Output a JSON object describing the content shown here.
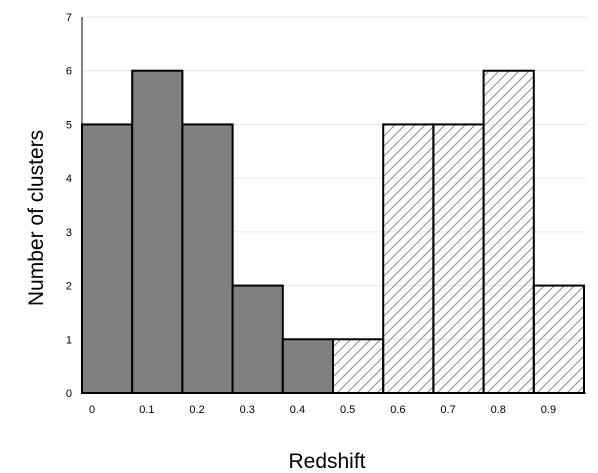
{
  "chart_data": {
    "type": "bar",
    "title": "",
    "xlabel": "Redshift",
    "ylabel": "Number of clusters",
    "categories": [
      "0",
      "0.1",
      "0.2",
      "0.3",
      "0.4",
      "0.5",
      "0.6",
      "0.7",
      "0.8",
      "0.9"
    ],
    "values": [
      5,
      6,
      5,
      2,
      1,
      1,
      5,
      5,
      6,
      2
    ],
    "bar_style": [
      "solid",
      "solid",
      "solid",
      "solid",
      "solid",
      "hatched",
      "hatched",
      "hatched",
      "hatched",
      "hatched"
    ],
    "ylim": [
      0,
      7
    ],
    "yticks": [
      0,
      1,
      2,
      3,
      4,
      5,
      6,
      7
    ],
    "grid": true,
    "colors": {
      "solid_fill": "#808080",
      "hatched_fill": "#ffffff",
      "hatch_line": "#8c8c8c",
      "bar_edge": "#000000",
      "grid": "#e6e6e6"
    }
  }
}
